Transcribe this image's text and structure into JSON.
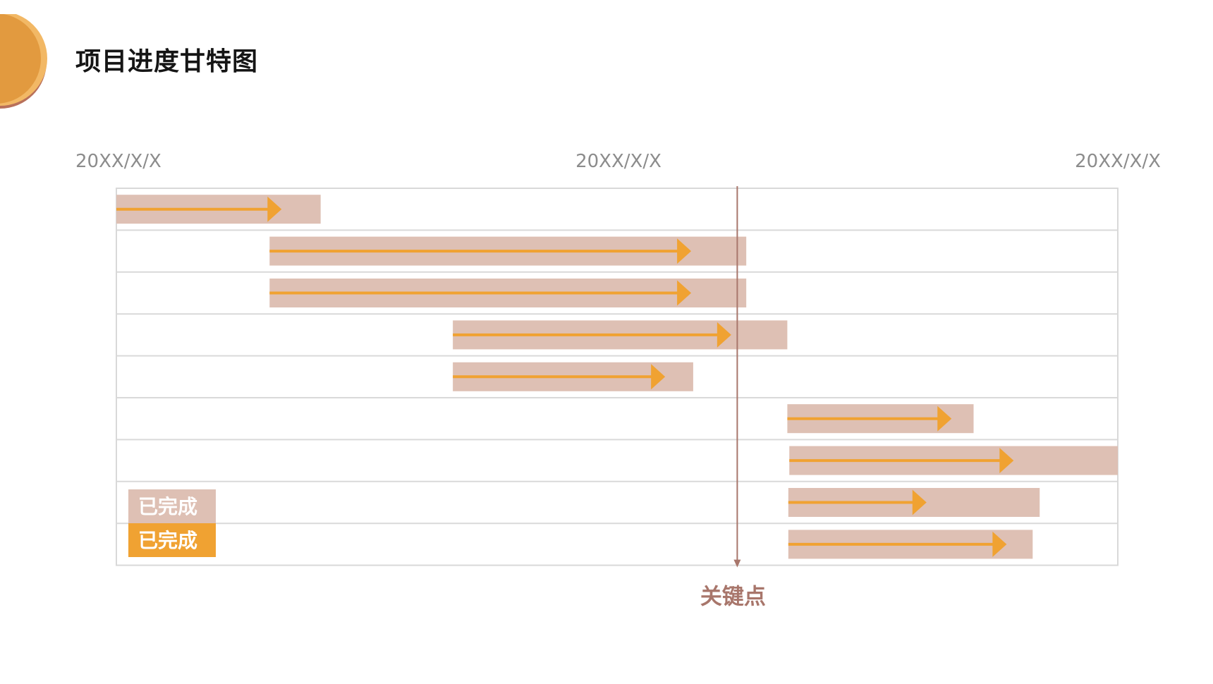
{
  "page": {
    "title": "项目进度甘特图"
  },
  "chart_data": {
    "type": "gantt",
    "title": "项目进度甘特图",
    "axis": {
      "tick_labels": [
        "20XX/X/X",
        "20XX/X/X",
        "20XX/X/X"
      ],
      "domain": [
        0,
        100
      ]
    },
    "tasks": [
      {
        "start": 0,
        "end": 20.4,
        "progress_end": 16.5
      },
      {
        "start": 15.3,
        "end": 62.9,
        "progress_end": 57.4
      },
      {
        "start": 15.3,
        "end": 62.9,
        "progress_end": 57.4
      },
      {
        "start": 33.6,
        "end": 67.0,
        "progress_end": 61.4
      },
      {
        "start": 33.6,
        "end": 57.6,
        "progress_end": 54.8
      },
      {
        "start": 67.0,
        "end": 85.6,
        "progress_end": 83.4
      },
      {
        "start": 67.2,
        "end": 100,
        "progress_end": 89.6
      },
      {
        "start": 67.1,
        "end": 92.2,
        "progress_end": 80.9
      },
      {
        "start": 67.1,
        "end": 91.5,
        "progress_end": 88.9
      }
    ],
    "milestone": {
      "label": "关键点",
      "x": 62.0
    },
    "legend": [
      {
        "label": "已完成",
        "color": "#dec0b4"
      },
      {
        "label": "已完成",
        "color": "#f0a232"
      }
    ],
    "colors": {
      "bar": "#dec0b4",
      "arrow": "#f0a232",
      "milestone": "#a8766b",
      "grid": "#d9d9d9",
      "tick_text": "#8c8c8c"
    },
    "legend_placement": "bottom-left",
    "grid": true
  }
}
